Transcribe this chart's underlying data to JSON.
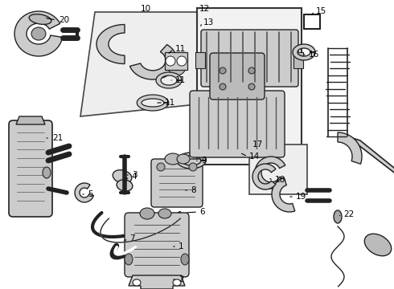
{
  "bg_color": "#ffffff",
  "line_color": "#222222",
  "fill_color": "#d8d8d8",
  "fig_w": 4.9,
  "fig_h": 3.6,
  "dpi": 100
}
